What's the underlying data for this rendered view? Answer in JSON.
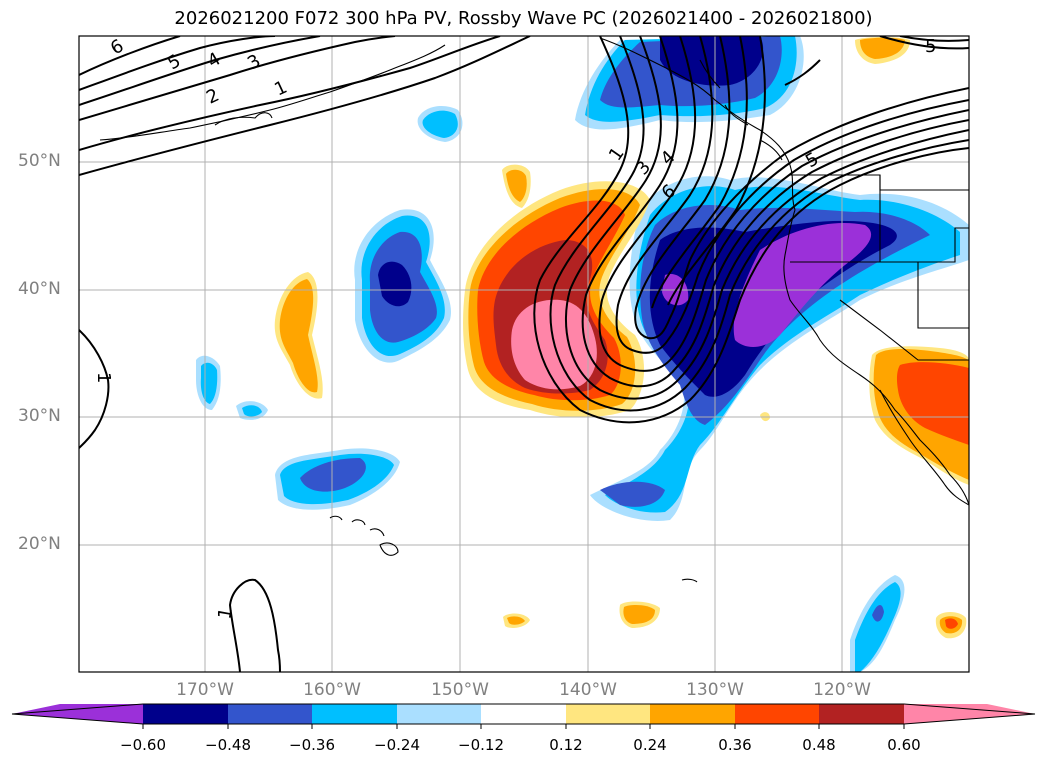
{
  "title": "2026021200 F072 300 hPa PV, Rossby Wave PC (2026021400 - 2026021800)",
  "map": {
    "lat_labels": [
      "50°N",
      "40°N",
      "30°N",
      "20°N"
    ],
    "lon_labels": [
      "170°W",
      "160°W",
      "150°W",
      "140°W",
      "130°W",
      "120°W"
    ],
    "contour_labels": [
      "6",
      "5",
      "4",
      "3",
      "2",
      "1",
      "1",
      "3",
      "4",
      "6",
      "5",
      "1",
      "1",
      "5"
    ]
  },
  "colorbar": {
    "ticks": [
      "−0.60",
      "−0.48",
      "−0.36",
      "−0.24",
      "−0.12",
      "0.12",
      "0.24",
      "0.36",
      "0.48",
      "0.60"
    ],
    "colors": [
      "#9b30d9",
      "#00008b",
      "#3355cc",
      "#00bfff",
      "#aadfff",
      "#ffffff",
      "#ffe680",
      "#ffa500",
      "#ff4500",
      "#b22222",
      "#ff85a8"
    ]
  }
}
